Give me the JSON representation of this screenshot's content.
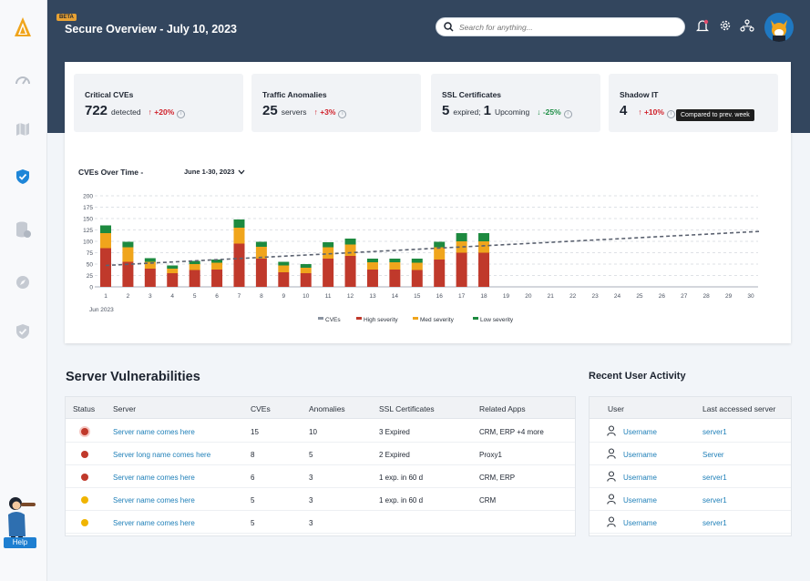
{
  "header": {
    "badge": "BETA",
    "title": "Secure Overview - July 10, 2023",
    "search_placeholder": "Search for anything...",
    "icons": [
      "bell-icon",
      "gear-icon",
      "network-icon"
    ]
  },
  "sidebar": {
    "items": [
      "dashboard-gauge-icon",
      "map-icon",
      "shield-check-icon",
      "database-icon",
      "compass-icon",
      "shield-icon"
    ],
    "active": "shield-check-icon",
    "help_label": "Help"
  },
  "stats": [
    {
      "title": "Critical CVEs",
      "value": "722",
      "unit": "detected",
      "change": "+20%",
      "direction": "up"
    },
    {
      "title": "Traffic Anomalies",
      "value": "25",
      "unit": "servers",
      "change": "+3%",
      "direction": "up"
    },
    {
      "title": "SSL Certificates",
      "value": "5",
      "unit": "expired;",
      "value2": "1",
      "unit2": "Upcoming",
      "change": "-25%",
      "direction": "down"
    },
    {
      "title": "Shadow IT",
      "value": "4",
      "unit": "",
      "change": "+10%",
      "direction": "up"
    }
  ],
  "tooltip": "Compared to prev. week",
  "chart_title": "CVEs Over Time -",
  "chart_range": "June 1-30, 2023",
  "chart_data": {
    "type": "bar",
    "stacked": true,
    "x": [
      1,
      2,
      3,
      4,
      5,
      6,
      7,
      8,
      9,
      10,
      11,
      12,
      13,
      14,
      15,
      16,
      17,
      18,
      19,
      20,
      21,
      22,
      23,
      24,
      25,
      26,
      27,
      28,
      29,
      30
    ],
    "xlabel_sub": "Jun 2023",
    "ylim": [
      0,
      200
    ],
    "yticks": [
      0,
      25,
      50,
      75,
      100,
      125,
      150,
      175,
      200
    ],
    "series": [
      {
        "name": "High severity",
        "color": "#c0392b",
        "values": [
          85,
          55,
          40,
          30,
          37,
          38,
          95,
          62,
          32,
          30,
          62,
          68,
          38,
          38,
          37,
          60,
          75,
          75,
          0,
          0,
          0,
          0,
          0,
          0,
          0,
          0,
          0,
          0,
          0,
          0
        ]
      },
      {
        "name": "Med severity",
        "color": "#f0a51c",
        "values": [
          33,
          32,
          15,
          10,
          13,
          15,
          35,
          26,
          15,
          12,
          25,
          25,
          16,
          16,
          16,
          27,
          25,
          25,
          0,
          0,
          0,
          0,
          0,
          0,
          0,
          0,
          0,
          0,
          0,
          0
        ]
      },
      {
        "name": "Low severity",
        "color": "#1d8a3f",
        "values": [
          17,
          12,
          8,
          7,
          7,
          7,
          18,
          11,
          8,
          8,
          11,
          13,
          8,
          8,
          9,
          12,
          18,
          18,
          0,
          0,
          0,
          0,
          0,
          0,
          0,
          0,
          0,
          0,
          0,
          0
        ]
      }
    ],
    "trend": {
      "name": "CVEs",
      "from": [
        1,
        47
      ],
      "to": [
        30,
        122
      ]
    },
    "legend": [
      "CVEs",
      "High severity",
      "Med severity",
      "Low severity"
    ],
    "legend_colors": [
      "#8a93a0",
      "#c0392b",
      "#f0a51c",
      "#1d8a3f"
    ],
    "grid": true
  },
  "servers": {
    "title": "Server Vulnerabilities",
    "columns": [
      "Status",
      "Server",
      "CVEs",
      "Anomalies",
      "SSL Certificates",
      "Related Apps"
    ],
    "rows": [
      {
        "status_color": "#c0392b",
        "server": "Server name comes here",
        "cves": "15",
        "anomalies": "10",
        "ssl": "3 Expired",
        "apps": "CRM, ERP +4 more"
      },
      {
        "status_color": "#c0392b",
        "server": "Server long name comes here",
        "cves": "8",
        "anomalies": "5",
        "ssl": "2 Expired",
        "apps": "Proxy1"
      },
      {
        "status_color": "#c0392b",
        "server": "Server name comes here",
        "cves": "6",
        "anomalies": "3",
        "ssl": "1 exp. in 60 d",
        "apps": "CRM, ERP"
      },
      {
        "status_color": "#f0b400",
        "server": "Server name comes here",
        "cves": "5",
        "anomalies": "3",
        "ssl": "1 exp. in 60 d",
        "apps": "CRM"
      },
      {
        "status_color": "#f0b400",
        "server": "Server name comes here",
        "cves": "5",
        "anomalies": "3",
        "ssl": "",
        "apps": ""
      }
    ]
  },
  "activity": {
    "title": "Recent User Activity",
    "columns": [
      "User",
      "Last accessed server"
    ],
    "rows": [
      {
        "user": "Username",
        "server": "server1"
      },
      {
        "user": "Username",
        "server": "Server"
      },
      {
        "user": "Username",
        "server": "server1"
      },
      {
        "user": "Username",
        "server": "server1"
      },
      {
        "user": "Username",
        "server": "server1"
      }
    ]
  }
}
